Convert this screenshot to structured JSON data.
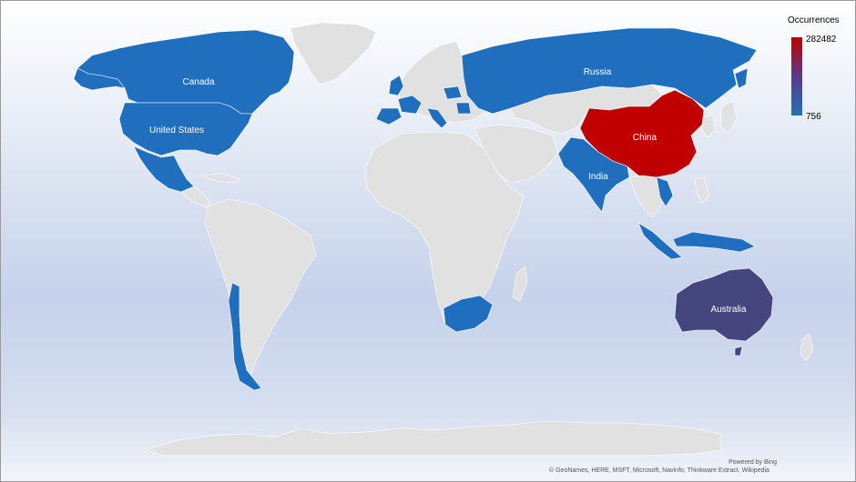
{
  "legend": {
    "title": "Occurrences",
    "max_label": "282482",
    "min_label": "756",
    "max_value": 282482,
    "min_value": 756,
    "color_high": "#c00000",
    "color_low": "#2171b5"
  },
  "colors": {
    "no_data": "#e1e1e1",
    "border": "#ffffff",
    "china": "#c00000",
    "australia": "#46467f",
    "blue": "#1f6fbe"
  },
  "countries": [
    {
      "key": "russia",
      "label": "Russia"
    },
    {
      "key": "canada",
      "label": "Canada"
    },
    {
      "key": "united_states",
      "label": "United States"
    },
    {
      "key": "china",
      "label": "China"
    },
    {
      "key": "india",
      "label": "India"
    },
    {
      "key": "australia",
      "label": "Australia"
    }
  ],
  "attribution": {
    "powered_by": "Powered by Bing",
    "copyright": "© GeoNames, HERE, MSFT, Microsoft, Navinfo, Thinkware Extract, Wikipedia"
  }
}
